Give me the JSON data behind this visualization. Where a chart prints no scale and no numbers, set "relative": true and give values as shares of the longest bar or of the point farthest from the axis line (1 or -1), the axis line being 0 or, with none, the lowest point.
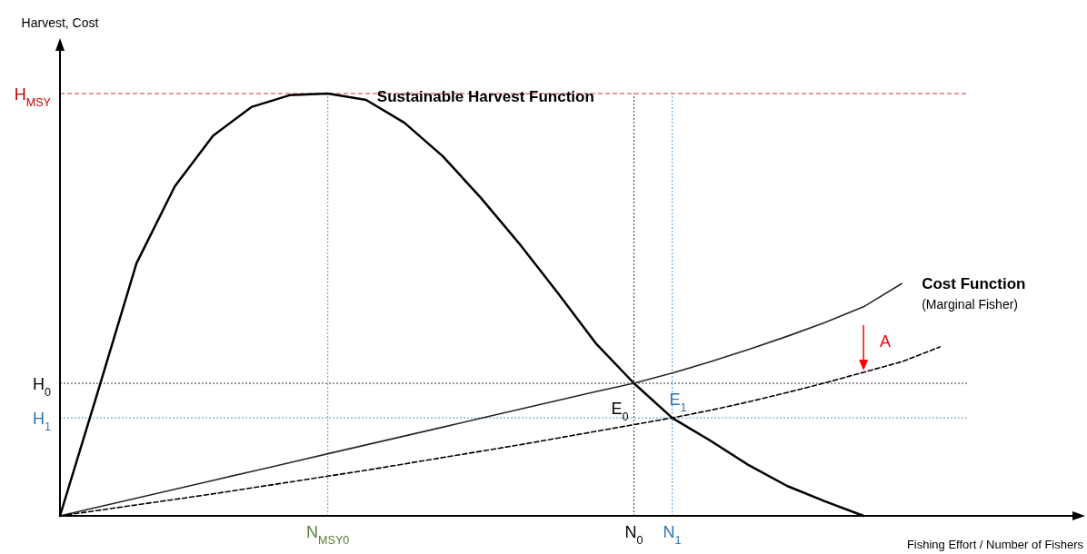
{
  "chart_data": {
    "type": "line",
    "relative": true,
    "xlabel": "Fishing Effort / Number of Fishers",
    "ylabel": "Harvest, Cost",
    "marker": "none",
    "legend": false,
    "categories": [
      null,
      null,
      null,
      null,
      null,
      null,
      null,
      "N$_{MSY0}$",
      null,
      null,
      null,
      null,
      null,
      null,
      null,
      "N$_{0}$",
      "N$_{1}$",
      null,
      null,
      null,
      null,
      null,
      null,
      null
    ],
    "series": [
      {
        "name": "Sustainable Harvest Function",
        "color": "#000000",
        "line_style": "solid",
        "values": [
          0,
          0.297,
          0.598,
          0.78,
          0.9,
          0.968,
          0.996,
          1,
          0.985,
          0.931,
          0.852,
          0.753,
          0.645,
          0.529,
          0.409,
          0.314,
          0.232,
          0.178,
          0.12,
          0.071,
          0.034,
          0,
          null,
          null
        ]
      },
      {
        "name": "Cost Function",
        "color": "#262626",
        "line_style": "solid",
        "values": [
          0,
          0.021,
          0.042,
          0.063,
          0.084,
          0.105,
          0.126,
          0.147,
          0.168,
          0.189,
          0.21,
          0.231,
          0.252,
          0.273,
          0.294,
          0.314,
          0.338,
          0.365,
          0.394,
          0.425,
          0.458,
          0.495,
          0.55,
          null
        ]
      },
      {
        "color": "#000000",
        "line_style": "dashed",
        "values": [
          0,
          0.013,
          0.026,
          0.039,
          0.052,
          0.066,
          0.08,
          0.094,
          0.108,
          0.123,
          0.138,
          0.153,
          0.168,
          0.184,
          0.2,
          0.216,
          0.232,
          0.25,
          0.27,
          0.292,
          0.315,
          0.34,
          0.365,
          0.4
        ]
      }
    ],
    "ref_lines": [
      {
        "axis": "y",
        "value": 1,
        "label": "H$_{MSY}$",
        "color": "#c00000",
        "line_style": "dashed"
      },
      {
        "axis": "y",
        "value": 0.314,
        "label": "H$_{0}$",
        "color": "#000000",
        "line_style": "dotted"
      },
      {
        "axis": "y",
        "value": 0.232,
        "label": "H$_{1}$",
        "color": "#2e75b6",
        "line_style": "dotted"
      },
      {
        "axis": "x",
        "value": "N$_{MSY0}$",
        "color": "#548235",
        "line_style": "dotted"
      },
      {
        "axis": "x",
        "value": "N$_{0}$",
        "color": "#000000",
        "line_style": "dotted"
      },
      {
        "axis": "x",
        "value": "N$_{1}$",
        "color": "#2e75b6",
        "line_style": "dotted"
      }
    ],
    "annotations": [
      {
        "text": "E$_{0}$",
        "x": "N$_{0}$",
        "y": 0.232
      },
      {
        "text": "E$_{1}$",
        "x": "N$_{1}$",
        "y": 0.232
      },
      "A",
      "(Marginal Fisher)"
    ]
  }
}
